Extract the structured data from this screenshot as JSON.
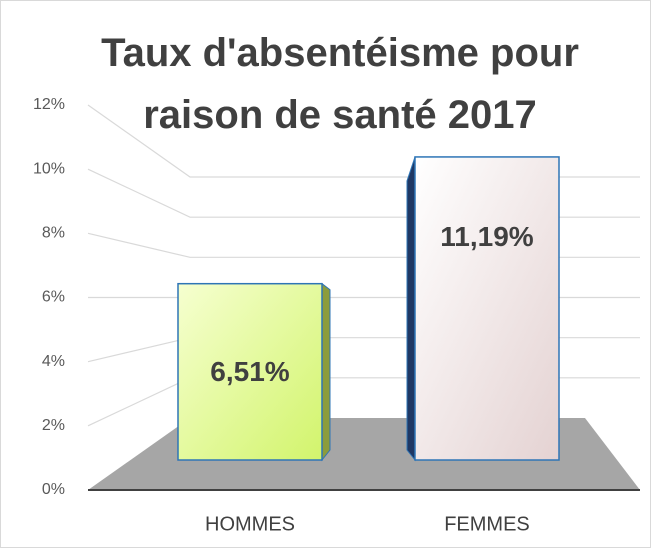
{
  "chart_data": {
    "type": "bar3d",
    "title": "Taux d'absentéisme pour raison de santé 2017",
    "categories": [
      "HOMMES",
      "FEMMES"
    ],
    "values": [
      6.51,
      11.19
    ],
    "value_labels": [
      "6,51%",
      "11,19%"
    ],
    "colors": [
      "#dcf98a",
      "#f0e6e6"
    ],
    "ylim": [
      0,
      12
    ],
    "yticks": [
      {
        "value": 0,
        "label": "0%"
      },
      {
        "value": 2,
        "label": "2%"
      },
      {
        "value": 4,
        "label": "4%"
      },
      {
        "value": 6,
        "label": "6%"
      },
      {
        "value": 8,
        "label": "8%"
      },
      {
        "value": 10,
        "label": "10%"
      },
      {
        "value": 12,
        "label": "12%"
      }
    ],
    "grid": true
  }
}
